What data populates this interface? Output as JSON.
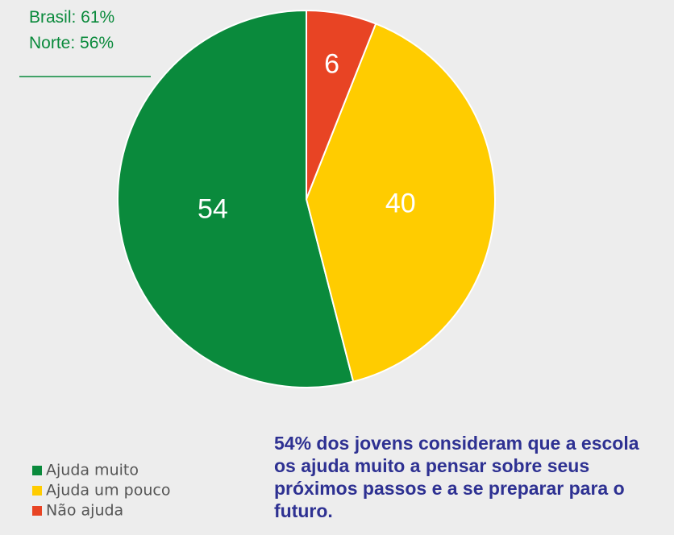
{
  "chart_data": {
    "type": "pie",
    "categories": [
      "Ajuda muito",
      "Ajuda um pouco",
      "Não ajuda"
    ],
    "values": [
      54,
      40,
      6
    ],
    "colors": [
      "#0a8a3c",
      "#ffcc00",
      "#e84424"
    ],
    "direction": "counterclockwise",
    "annotations": [
      "Brasil: 61%",
      "Norte: 56%"
    ],
    "caption": "54% dos jovens consideram que a escola os ajuda muito a pensar sobre seus próximos passos e a se preparar para o futuro."
  }
}
